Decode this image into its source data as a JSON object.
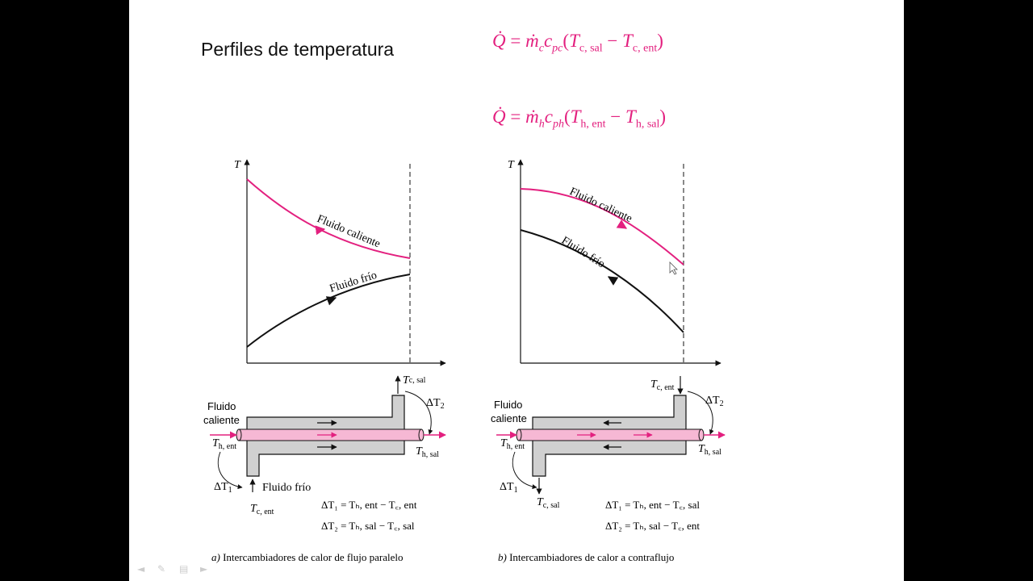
{
  "slide": {
    "title": "Perfiles de temperatura",
    "eq1": {
      "lhs": "Q̇",
      "eq": "=",
      "mdot": "ṁ",
      "sub1": "c",
      "c": "c",
      "sub2": "pc",
      "open": "(T",
      "t1sub": "c, sal",
      "minus": "−",
      "t2": "T",
      "t2sub": "c, ent",
      "close": ")"
    },
    "eq2": {
      "lhs": "Q̇",
      "eq": "=",
      "mdot": "ṁ",
      "sub1": "h",
      "c": "c",
      "sub2": "ph",
      "open": "(T",
      "t1sub": "h, ent",
      "minus": "−",
      "t2": "T",
      "t2sub": "h, sal",
      "close": ")"
    }
  },
  "diagram_a": {
    "axis_t": "T",
    "hot_label": "Fluido caliente",
    "cold_label": "Fluido frío",
    "hot_fluid": [
      "Fluido",
      "caliente"
    ],
    "th_ent": "T",
    "th_ent_sub": "h, ent",
    "th_sal": "T",
    "th_sal_sub": "h, sal",
    "tc_ent": "T",
    "tc_ent_sub": "c, ent",
    "tc_sal": "T",
    "tc_sal_sub": "c, sal",
    "cold_in": "Fluido frío",
    "dt1": "ΔT",
    "dt1_sub": "1",
    "dt2": "ΔT",
    "dt2_sub": "2",
    "eq_dt1": "ΔT₁ = Tₕ, ent − T꜀, ent",
    "eq_dt2": "ΔT₂ = Tₕ, sal − T꜀, sal",
    "caption_letter": "a)",
    "caption": "Intercambiadores de calor de flujo paralelo"
  },
  "diagram_b": {
    "axis_t": "T",
    "hot_label": "Fluido caliente",
    "cold_label": "Fluido frío",
    "hot_fluid": [
      "Fluido",
      "caliente"
    ],
    "th_ent": "T",
    "th_ent_sub": "h, ent",
    "th_sal": "T",
    "th_sal_sub": "h, sal",
    "tc_ent": "T",
    "tc_ent_sub": "c, ent",
    "tc_sal": "T",
    "tc_sal_sub": "c, sal",
    "dt1": "ΔT",
    "dt1_sub": "1",
    "dt2": "ΔT",
    "dt2_sub": "2",
    "eq_dt1": "ΔT₁ = Tₕ, ent − T꜀, sal",
    "eq_dt2": "ΔT₂ = Tₕ, sal − T꜀, ent",
    "caption_letter": "b)",
    "caption": "Intercambiadores de calor a contraflujo"
  },
  "colors": {
    "hot": "#e3207f",
    "cold": "#111111",
    "shell": "#d0d0d0",
    "tube": "#f6b8d4"
  },
  "controls": [
    "back-icon",
    "pen-icon",
    "menu-icon",
    "forward-icon"
  ]
}
